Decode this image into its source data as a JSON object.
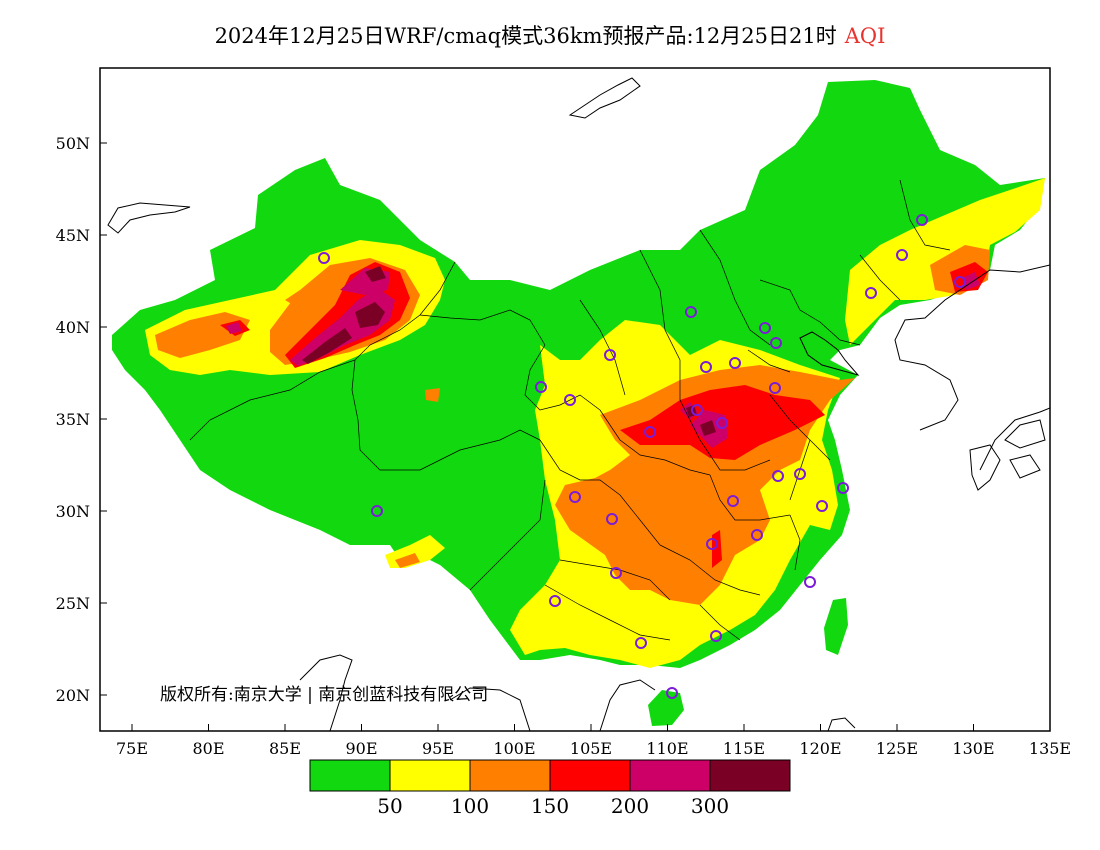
{
  "title": {
    "main": "2024年12月25日WRF/cmaq模式36km预报产品:12月25日21时",
    "variable": "AQI",
    "variable_color": "#e8332f"
  },
  "axes": {
    "x_ticks": [
      "75E",
      "80E",
      "85E",
      "90E",
      "95E",
      "100E",
      "105E",
      "110E",
      "115E",
      "120E",
      "125E",
      "130E",
      "135E"
    ],
    "y_ticks": [
      "50N",
      "45N",
      "40N",
      "35N",
      "30N",
      "25N",
      "20N"
    ]
  },
  "copyright": "版权所有:南京大学 | 南京创蓝科技有限公司",
  "legend": {
    "colors": [
      "#12d90f",
      "#ffff00",
      "#ff8000",
      "#ff0000",
      "#cc0066",
      "#7a0026"
    ],
    "labels": [
      "50",
      "100",
      "150",
      "200",
      "300"
    ]
  }
}
